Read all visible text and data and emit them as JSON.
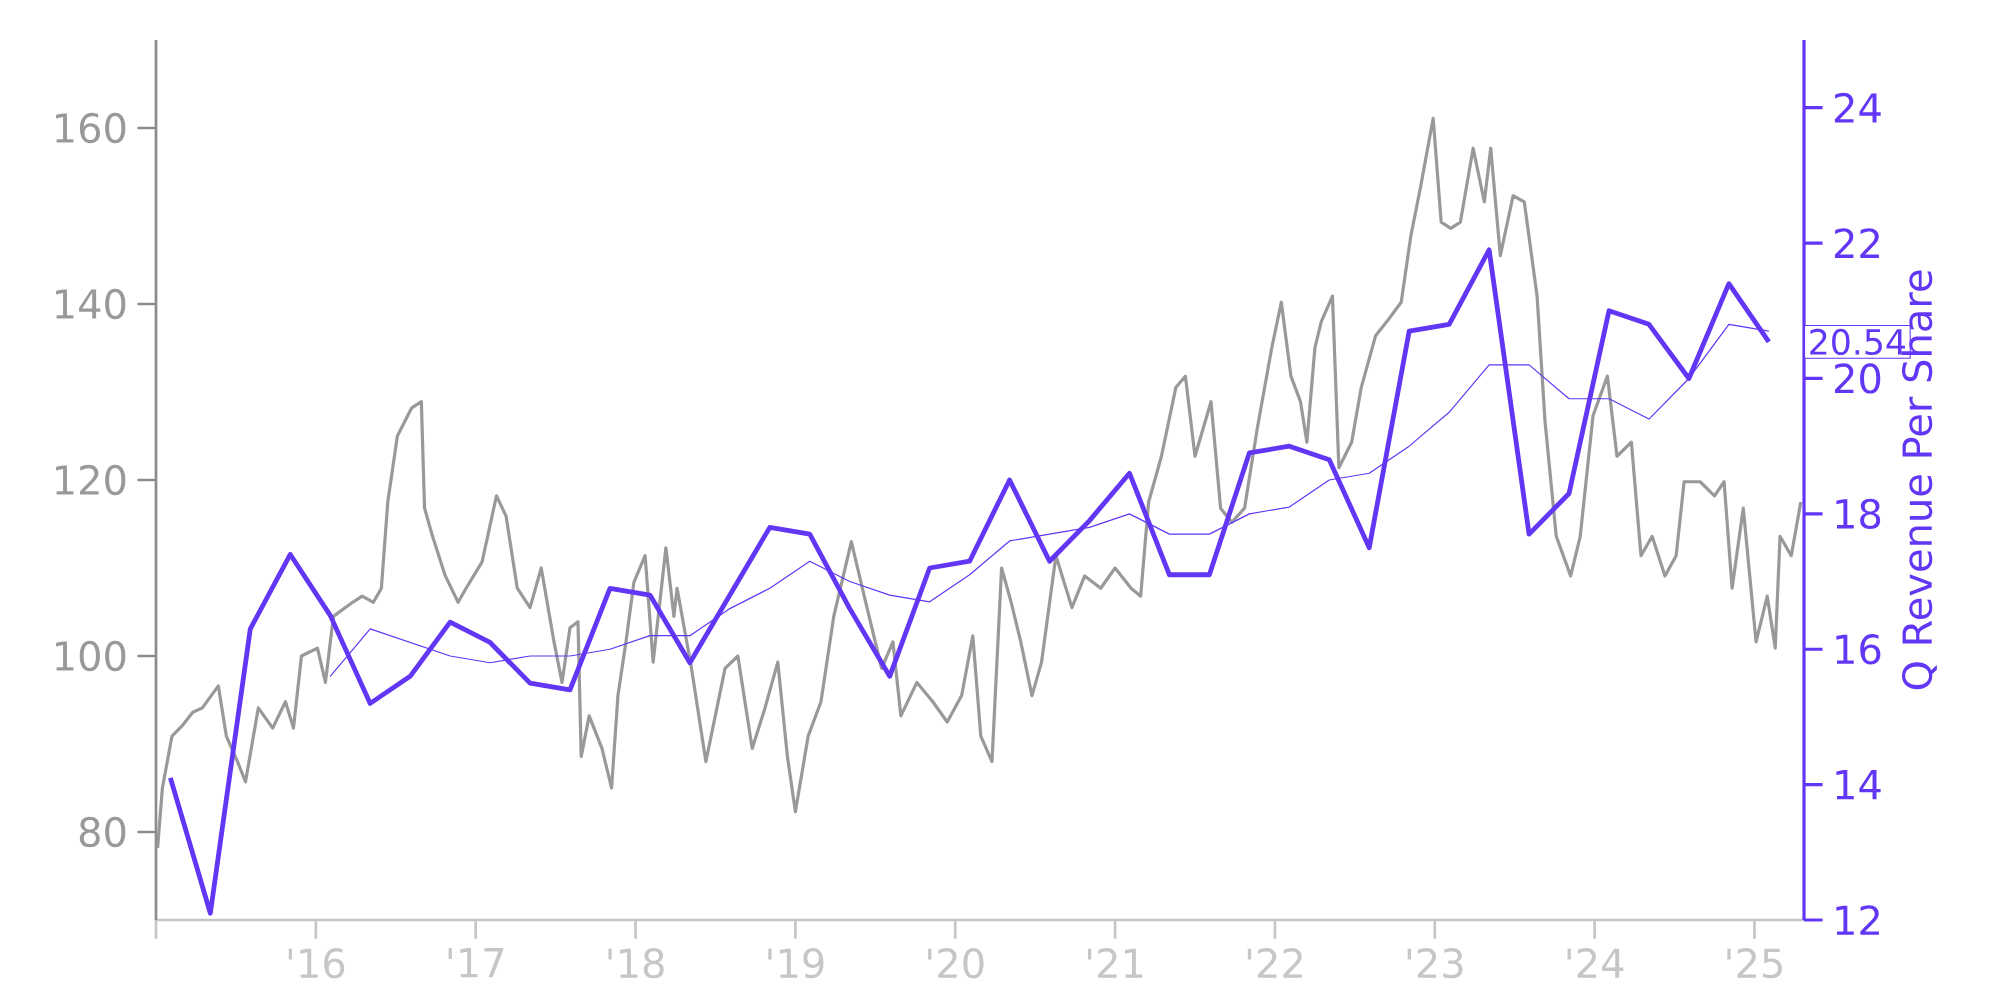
{
  "chart_data": {
    "type": "line",
    "xlim": [
      2015,
      2025.31
    ],
    "xticks": [
      {
        "value": 2015,
        "label": null
      },
      {
        "value": 2016,
        "label": "'16"
      },
      {
        "value": 2017,
        "label": "'17"
      },
      {
        "value": 2018,
        "label": "'18"
      },
      {
        "value": 2019,
        "label": "'19"
      },
      {
        "value": 2020,
        "label": "'20"
      },
      {
        "value": 2021,
        "label": "'21"
      },
      {
        "value": 2022,
        "label": "'22"
      },
      {
        "value": 2023,
        "label": "'23"
      },
      {
        "value": 2024,
        "label": "'24"
      },
      {
        "value": 2025,
        "label": "'25"
      }
    ],
    "ylim": [
      70,
      170
    ],
    "yticks": [
      80,
      100,
      120,
      140,
      160
    ],
    "y2lim": [
      12,
      25
    ],
    "y2ticks": [
      12,
      14,
      16,
      18,
      20,
      22,
      24
    ],
    "y2label": "Q Revenue Per Share",
    "series": [
      {
        "color": "#999999",
        "x": [
          2015.01,
          2015.04,
          2015.1,
          2015.16,
          2015.23,
          2015.29,
          2015.39,
          2015.44,
          2015.51,
          2015.56,
          2015.64,
          2015.73,
          2015.81,
          2015.86,
          2015.91,
          2016.01,
          2016.06,
          2016.11,
          2016.23,
          2016.29,
          2016.36,
          2016.41,
          2016.45,
          2016.51,
          2016.6,
          2016.66,
          2016.68,
          2016.73,
          2016.81,
          2016.89,
          2016.94,
          2017.04,
          2017.13,
          2017.19,
          2017.26,
          2017.34,
          2017.41,
          2017.49,
          2017.54,
          2017.59,
          2017.64,
          2017.66,
          2017.71,
          2017.79,
          2017.85,
          2017.89,
          2017.94,
          2017.99,
          2018.06,
          2018.11,
          2018.19,
          2018.24,
          2018.26,
          2018.35,
          2018.44,
          2018.56,
          2018.64,
          2018.73,
          2018.81,
          2018.89,
          2018.95,
          2019.0,
          2019.08,
          2019.16,
          2019.24,
          2019.35,
          2019.44,
          2019.54,
          2019.61,
          2019.66,
          2019.76,
          2019.86,
          2019.95,
          2020.04,
          2020.11,
          2020.16,
          2020.23,
          2020.29,
          2020.35,
          2020.41,
          2020.48,
          2020.54,
          2020.63,
          2020.73,
          2020.81,
          2020.91,
          2021.0,
          2021.1,
          2021.16,
          2021.21,
          2021.29,
          2021.38,
          2021.44,
          2021.5,
          2021.6,
          2021.66,
          2021.73,
          2021.81,
          2021.89,
          2021.98,
          2022.04,
          2022.1,
          2022.16,
          2022.2,
          2022.25,
          2022.29,
          2022.36,
          2022.4,
          2022.48,
          2022.54,
          2022.63,
          2022.7,
          2022.79,
          2022.85,
          2022.91,
          2022.99,
          2023.04,
          2023.1,
          2023.16,
          2023.24,
          2023.31,
          2023.35,
          2023.41,
          2023.49,
          2023.56,
          2023.64,
          2023.69,
          2023.76,
          2023.85,
          2023.91,
          2023.99,
          2024.08,
          2024.14,
          2024.23,
          2024.29,
          2024.36,
          2024.44,
          2024.51,
          2024.56,
          2024.66,
          2024.75,
          2024.81,
          2024.86,
          2024.93,
          2025.01,
          2025.08,
          2025.13,
          2025.16,
          2025.23,
          2025.29
        ],
        "values": [
          78.2,
          85.0,
          90.9,
          92.0,
          93.6,
          94.1,
          96.6,
          90.9,
          88.0,
          85.7,
          94.1,
          91.8,
          94.8,
          91.8,
          100.0,
          100.9,
          97.0,
          104.5,
          106.1,
          106.8,
          106.1,
          107.7,
          117.5,
          125.0,
          128.2,
          128.9,
          116.8,
          113.6,
          109.1,
          106.1,
          107.7,
          110.7,
          118.2,
          115.9,
          107.7,
          105.5,
          110.0,
          101.6,
          97.0,
          103.2,
          103.9,
          88.6,
          93.2,
          89.5,
          85.0,
          95.5,
          101.6,
          108.4,
          111.4,
          99.3,
          112.3,
          104.5,
          107.7,
          98.6,
          88.0,
          98.6,
          100.0,
          89.5,
          94.1,
          99.3,
          88.6,
          82.3,
          90.9,
          94.8,
          104.5,
          113.0,
          106.1,
          98.6,
          101.6,
          93.2,
          97.0,
          94.8,
          92.5,
          95.5,
          102.3,
          90.9,
          88.0,
          110.0,
          106.1,
          101.6,
          95.5,
          99.3,
          111.4,
          105.5,
          109.1,
          107.7,
          110.0,
          107.7,
          106.8,
          117.5,
          122.7,
          130.5,
          131.8,
          122.7,
          128.9,
          116.8,
          115.2,
          116.8,
          125.9,
          135.0,
          140.2,
          131.8,
          128.9,
          124.3,
          135.0,
          138.0,
          140.9,
          121.4,
          124.3,
          130.5,
          136.4,
          138.0,
          140.2,
          147.7,
          153.2,
          161.1,
          149.3,
          148.6,
          149.3,
          157.7,
          151.6,
          157.7,
          145.5,
          152.3,
          151.6,
          140.9,
          126.6,
          113.6,
          109.1,
          113.6,
          127.3,
          131.8,
          122.7,
          124.3,
          111.4,
          113.6,
          109.1,
          111.4,
          119.8,
          119.8,
          118.2,
          119.8,
          107.7,
          116.8,
          101.6,
          106.8,
          100.9,
          113.6,
          111.4,
          117.5
        ]
      },
      {
        "color": "#6236f5",
        "axis": "y2",
        "x": [
          2015.09,
          2015.34,
          2015.59,
          2015.84,
          2016.09,
          2016.34,
          2016.59,
          2016.84,
          2017.09,
          2017.34,
          2017.59,
          2017.84,
          2018.09,
          2018.34,
          2018.59,
          2018.84,
          2019.09,
          2019.34,
          2019.59,
          2019.84,
          2020.09,
          2020.34,
          2020.59,
          2020.84,
          2021.09,
          2021.34,
          2021.59,
          2021.84,
          2022.09,
          2022.34,
          2022.59,
          2022.84,
          2023.09,
          2023.34,
          2023.59,
          2023.84,
          2024.09,
          2024.34,
          2024.59,
          2024.84,
          2025.09
        ],
        "values": [
          14.1,
          12.1,
          16.3,
          17.4,
          16.5,
          15.2,
          15.6,
          16.4,
          16.1,
          15.5,
          15.4,
          16.9,
          16.8,
          15.8,
          16.8,
          17.8,
          17.7,
          16.6,
          15.6,
          17.2,
          17.3,
          18.5,
          17.3,
          17.9,
          18.6,
          17.1,
          17.1,
          18.9,
          19.0,
          18.8,
          17.5,
          20.7,
          20.8,
          21.9,
          17.7,
          18.3,
          21.0,
          20.8,
          20.0,
          21.4,
          20.54
        ],
        "value_labels": [
          null,
          null,
          null,
          null,
          null,
          null,
          null,
          null,
          null,
          null,
          null,
          null,
          null,
          null,
          null,
          null,
          null,
          null,
          null,
          null,
          null,
          null,
          null,
          null,
          null,
          null,
          null,
          null,
          null,
          null,
          null,
          null,
          null,
          null,
          null,
          null,
          null,
          null,
          null,
          null,
          "20.54"
        ]
      },
      {
        "color": "#6236f5",
        "axis": "y2",
        "x": [
          2016.09,
          2016.34,
          2016.59,
          2016.84,
          2017.09,
          2017.34,
          2017.59,
          2017.84,
          2018.09,
          2018.34,
          2018.59,
          2018.84,
          2019.09,
          2019.34,
          2019.59,
          2019.84,
          2020.09,
          2020.34,
          2020.59,
          2020.84,
          2021.09,
          2021.34,
          2021.59,
          2021.84,
          2022.09,
          2022.34,
          2022.59,
          2022.84,
          2023.09,
          2023.34,
          2023.59,
          2023.84,
          2024.09,
          2024.34,
          2024.59,
          2024.84,
          2025.09
        ],
        "values": [
          15.6,
          16.3,
          16.1,
          15.9,
          15.8,
          15.9,
          15.9,
          16.0,
          16.2,
          16.2,
          16.6,
          16.9,
          17.3,
          17.0,
          16.8,
          16.7,
          17.1,
          17.6,
          17.7,
          17.8,
          18.0,
          17.7,
          17.7,
          18.0,
          18.1,
          18.5,
          18.6,
          19.0,
          19.5,
          20.2,
          20.2,
          19.7,
          19.7,
          19.4,
          20.0,
          20.8,
          20.7
        ]
      }
    ]
  }
}
